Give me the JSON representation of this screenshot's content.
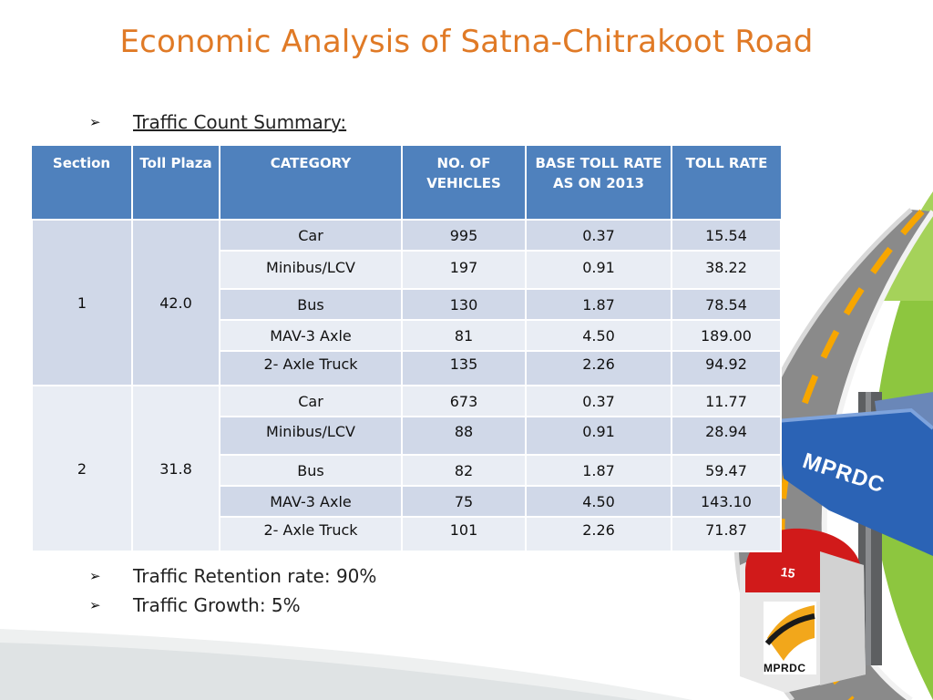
{
  "title": "Economic Analysis of Satna-Chitrakoot Road",
  "bullets": {
    "heading": "Traffic Count Summary:",
    "retention": "Traffic Retention rate: 90%",
    "growth": "Traffic Growth: 5%",
    "arrow_glyph": "➢"
  },
  "table": {
    "headers": [
      "Section",
      "Toll Plaza",
      "CATEGORY",
      "NO. OF VEHICLES",
      "BASE TOLL RATE AS ON 2013",
      "TOLL RATE"
    ],
    "sections": [
      {
        "section": "1",
        "toll_plaza": "42.0",
        "rows": [
          {
            "category": "Car",
            "vehicles": "995",
            "base": "0.37",
            "toll": "15.54"
          },
          {
            "category": "Minibus/LCV",
            "vehicles": "197",
            "base": "0.91",
            "toll": "38.22"
          },
          {
            "category": "Bus",
            "vehicles": "130",
            "base": "1.87",
            "toll": "78.54"
          },
          {
            "category": "MAV-3 Axle",
            "vehicles": "81",
            "base": "4.50",
            "toll": "189.00"
          },
          {
            "category": "2- Axle Truck",
            "vehicles": "135",
            "base": "2.26",
            "toll": "94.92"
          }
        ]
      },
      {
        "section": "2",
        "toll_plaza": "31.8",
        "rows": [
          {
            "category": "Car",
            "vehicles": "673",
            "base": "0.37",
            "toll": "11.77"
          },
          {
            "category": "Minibus/LCV",
            "vehicles": "88",
            "base": "0.91",
            "toll": "28.94"
          },
          {
            "category": "Bus",
            "vehicles": "82",
            "base": "1.87",
            "toll": "59.47"
          },
          {
            "category": "MAV-3 Axle",
            "vehicles": "75",
            "base": "4.50",
            "toll": "143.10"
          },
          {
            "category": "2- Axle Truck",
            "vehicles": "101",
            "base": "2.26",
            "toll": "71.87"
          }
        ]
      }
    ]
  },
  "decoration": {
    "sign_text": "MPRDC",
    "milestone_number": "15",
    "milestone_logo_text": "MPRDC",
    "colors": {
      "title": "#e07a26",
      "header_bg": "#4f81bd",
      "grass": "#8dc63f",
      "road": "#8a8a8a",
      "sign": "#2b63b5",
      "milestone_cap": "#d11a1a"
    }
  }
}
